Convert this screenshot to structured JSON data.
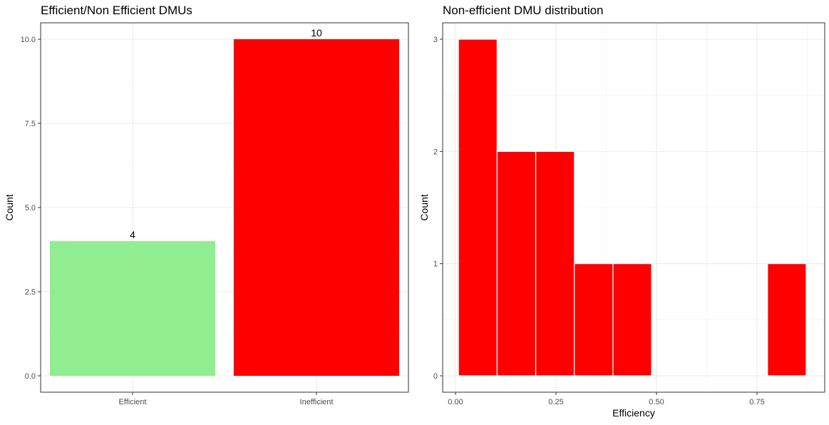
{
  "chart_data": [
    {
      "type": "bar",
      "title": "Efficient/Non Efficient DMUs",
      "xlabel": "",
      "ylabel": "Count",
      "categories": [
        "Efficient",
        "Inefficient"
      ],
      "values": [
        4,
        10
      ],
      "value_labels": [
        "4",
        "10"
      ],
      "colors": [
        "#90EE90",
        "#FF0000"
      ],
      "ylim": [
        0,
        10
      ],
      "yticks": [
        0,
        2.5,
        5,
        7.5,
        10
      ],
      "ytick_labels": [
        "0.0",
        "2.5",
        "5.0",
        "7.5",
        "10.0"
      ],
      "grid": true,
      "legend": "none"
    },
    {
      "type": "bar",
      "subtype": "histogram",
      "title": "Non-efficient DMU distribution",
      "xlabel": "Efficiency",
      "ylabel": "Count",
      "bins": [
        {
          "x0": 0.0074,
          "x1": 0.1035,
          "count": 3
        },
        {
          "x0": 0.1035,
          "x1": 0.1996,
          "count": 2
        },
        {
          "x0": 0.1996,
          "x1": 0.2957,
          "count": 2
        },
        {
          "x0": 0.2957,
          "x1": 0.3918,
          "count": 1
        },
        {
          "x0": 0.3918,
          "x1": 0.4879,
          "count": 1
        },
        {
          "x0": 0.4879,
          "x1": 0.584,
          "count": 0
        },
        {
          "x0": 0.584,
          "x1": 0.6801,
          "count": 0
        },
        {
          "x0": 0.6801,
          "x1": 0.7762,
          "count": 0
        },
        {
          "x0": 0.7762,
          "x1": 0.8723,
          "count": 1
        }
      ],
      "bar_color": "#FF0000",
      "bar_outline": "#FFFFFF",
      "xticks": [
        0,
        0.25,
        0.5,
        0.75
      ],
      "xtick_labels": [
        "0.00",
        "0.25",
        "0.50",
        "0.75"
      ],
      "yticks": [
        0,
        1,
        2,
        3
      ],
      "ytick_labels": [
        "0",
        "1",
        "2",
        "3"
      ],
      "grid": true,
      "legend": "none"
    }
  ]
}
